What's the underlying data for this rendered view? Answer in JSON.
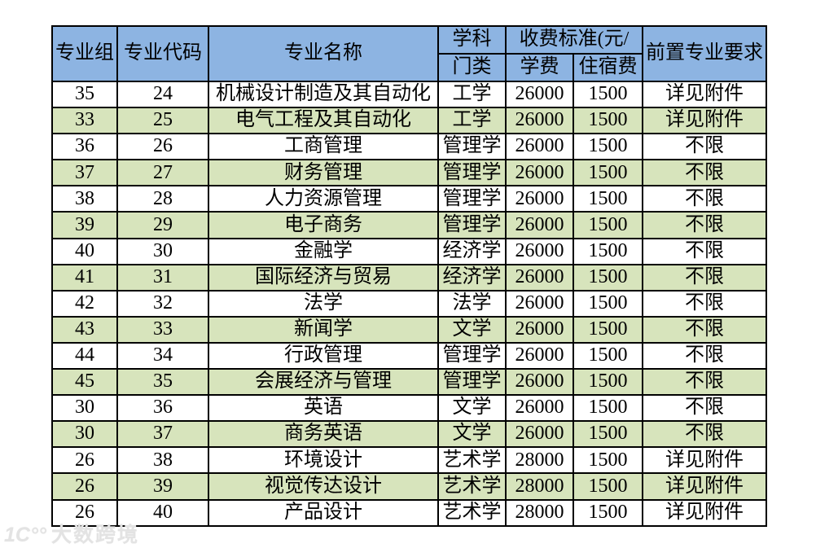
{
  "table": {
    "header": {
      "major_group": "专业组",
      "major_code": "专业代码",
      "major_name": "专业名称",
      "subject_line1": "学科",
      "subject_line2": "门类",
      "fee_standard": "收费标准(元/",
      "tuition": "学费",
      "accommodation": "住宿费",
      "prerequisite": "前置专业要求"
    },
    "rows": [
      [
        "35",
        "24",
        "机械设计制造及其自动化",
        "工学",
        "26000",
        "1500",
        "详见附件"
      ],
      [
        "33",
        "25",
        "电气工程及其自动化",
        "工学",
        "26000",
        "1500",
        "详见附件"
      ],
      [
        "36",
        "26",
        "工商管理",
        "管理学",
        "26000",
        "1500",
        "不限"
      ],
      [
        "37",
        "27",
        "财务管理",
        "管理学",
        "26000",
        "1500",
        "不限"
      ],
      [
        "38",
        "28",
        "人力资源管理",
        "管理学",
        "26000",
        "1500",
        "不限"
      ],
      [
        "39",
        "29",
        "电子商务",
        "管理学",
        "26000",
        "1500",
        "不限"
      ],
      [
        "40",
        "30",
        "金融学",
        "经济学",
        "26000",
        "1500",
        "不限"
      ],
      [
        "41",
        "31",
        "国际经济与贸易",
        "经济学",
        "26000",
        "1500",
        "不限"
      ],
      [
        "42",
        "32",
        "法学",
        "法学",
        "26000",
        "1500",
        "不限"
      ],
      [
        "43",
        "33",
        "新闻学",
        "文学",
        "26000",
        "1500",
        "不限"
      ],
      [
        "44",
        "34",
        "行政管理",
        "管理学",
        "26000",
        "1500",
        "不限"
      ],
      [
        "45",
        "35",
        "会展经济与管理",
        "管理学",
        "26000",
        "1500",
        "不限"
      ],
      [
        "30",
        "36",
        "英语",
        "文学",
        "26000",
        "1500",
        "不限"
      ],
      [
        "30",
        "37",
        "商务英语",
        "文学",
        "26000",
        "1500",
        "不限"
      ],
      [
        "26",
        "38",
        "环境设计",
        "艺术学",
        "28000",
        "1500",
        "详见附件"
      ],
      [
        "26",
        "39",
        "视觉传达设计",
        "艺术学",
        "28000",
        "1500",
        "详见附件"
      ],
      [
        "26",
        "40",
        "产品设计",
        "艺术学",
        "28000",
        "1500",
        "详见附件"
      ]
    ],
    "colors": {
      "header_bg": "#8db4e2",
      "alt_row_bg": "#d7e4bc",
      "border": "#000000"
    }
  },
  "watermark": {
    "logo": "1C°°",
    "text": "大数跨境"
  }
}
